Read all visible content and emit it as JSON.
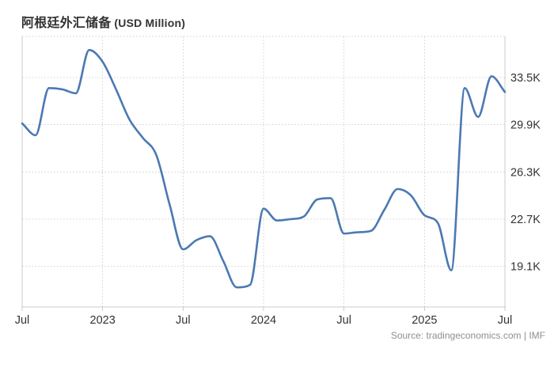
{
  "header": {
    "title": "阿根廷外汇储备",
    "unit": "(USD Million)"
  },
  "source": {
    "label": "Source: tradingeconomics.com | IMF"
  },
  "chart_data": {
    "type": "line",
    "title": "阿根廷外汇储备 (USD Million)",
    "xlabel": "",
    "ylabel": "",
    "unit": "USD Million (axis shown in thousands, K)",
    "x": [
      "2022-07",
      "2022-08",
      "2022-09",
      "2022-10",
      "2022-11",
      "2022-12",
      "2023-01",
      "2023-02",
      "2023-03",
      "2023-04",
      "2023-05",
      "2023-06",
      "2023-07",
      "2023-08",
      "2023-09",
      "2023-10",
      "2023-11",
      "2023-12",
      "2024-01",
      "2024-02",
      "2024-03",
      "2024-04",
      "2024-05",
      "2024-06",
      "2024-07",
      "2024-08",
      "2024-09",
      "2024-10",
      "2024-11",
      "2024-12",
      "2025-01",
      "2025-02",
      "2025-03",
      "2025-04",
      "2025-05",
      "2025-06",
      "2025-07"
    ],
    "series": [
      {
        "name": "阿根廷外汇储备",
        "values": [
          30.0,
          29.1,
          32.7,
          32.6,
          32.3,
          35.6,
          34.7,
          32.6,
          30.3,
          28.9,
          27.6,
          23.8,
          20.4,
          21.1,
          21.4,
          19.5,
          17.5,
          17.7,
          23.5,
          22.6,
          22.7,
          22.9,
          24.2,
          24.3,
          21.6,
          21.7,
          21.8,
          23.4,
          25.0,
          24.5,
          23.0,
          22.4,
          18.8,
          32.7,
          30.5,
          33.6,
          32.4
        ]
      }
    ],
    "x_ticks": [
      {
        "index": 0,
        "label": "Jul"
      },
      {
        "index": 6,
        "label": "2023"
      },
      {
        "index": 12,
        "label": "Jul"
      },
      {
        "index": 18,
        "label": "2024"
      },
      {
        "index": 24,
        "label": "Jul"
      },
      {
        "index": 30,
        "label": "2025"
      },
      {
        "index": 36,
        "label": "Jul"
      }
    ],
    "y_ticks": [
      {
        "value": 33.5,
        "label": "33.5K"
      },
      {
        "value": 29.9,
        "label": "29.9K"
      },
      {
        "value": 26.3,
        "label": "26.3K"
      },
      {
        "value": 22.7,
        "label": "22.7K"
      },
      {
        "value": 19.1,
        "label": "19.1K"
      }
    ],
    "ylim": [
      16.0,
      36.64
    ],
    "grid": true,
    "legend": false,
    "colors": {
      "line": "#4b79b3",
      "grid": "#dcdcdc",
      "axis": "#cccccc",
      "tick_text": "#333333",
      "source_text": "#8f8f8f"
    }
  }
}
